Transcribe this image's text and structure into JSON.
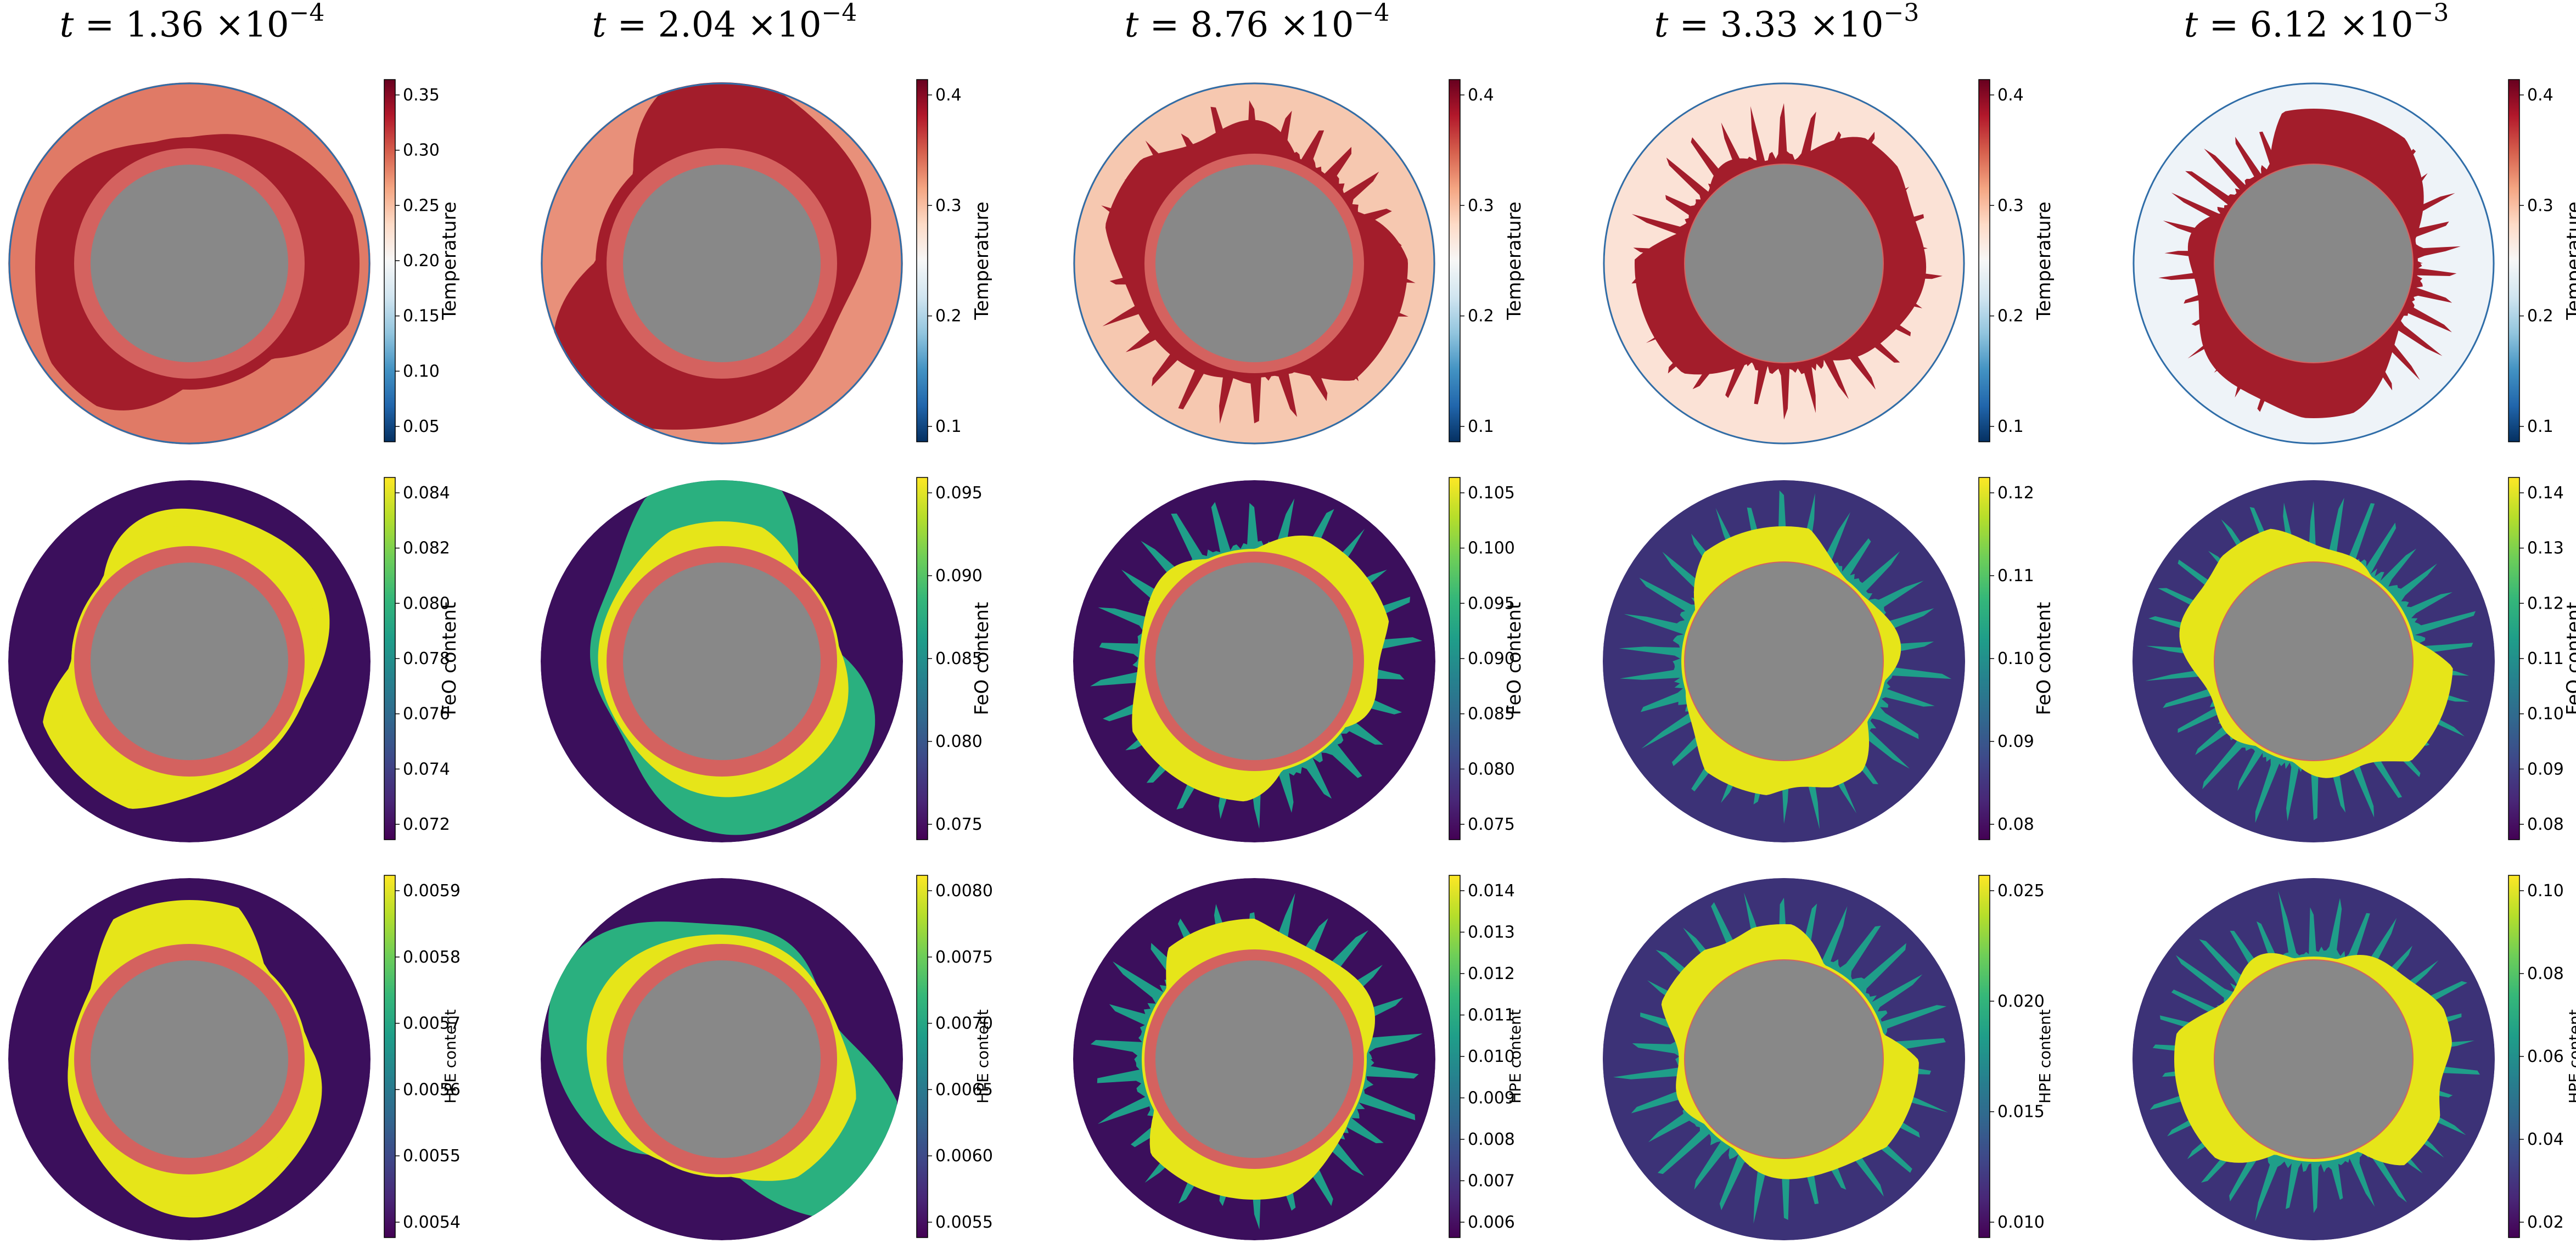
{
  "figure": {
    "columns": [
      {
        "t_mantissa": "1.36",
        "t_exponent": "−4"
      },
      {
        "t_mantissa": "2.04",
        "t_exponent": "−4"
      },
      {
        "t_mantissa": "8.76",
        "t_exponent": "−4"
      },
      {
        "t_mantissa": "3.33",
        "t_exponent": "−3"
      },
      {
        "t_mantissa": "6.12",
        "t_exponent": "−3"
      }
    ],
    "time_symbol": "t",
    "equals": "=",
    "times_ten": "×10",
    "rows": [
      {
        "field": "temperature",
        "colorbar_label": "Temperature",
        "colormap": "RdBu_r",
        "ticks": [
          [
            "0.35",
            "0.30",
            "0.25",
            "0.20",
            "0.15",
            "0.10",
            "0.05"
          ],
          [
            "0.4",
            "0.3",
            "0.2",
            "0.1"
          ],
          [
            "0.4",
            "0.3",
            "0.2",
            "0.1"
          ],
          [
            "0.4",
            "0.3",
            "0.2",
            "0.1"
          ],
          [
            "0.4",
            "0.3",
            "0.2",
            "0.1"
          ]
        ]
      },
      {
        "field": "feo",
        "colorbar_label": "FeO content",
        "colormap": "viridis",
        "ticks": [
          [
            "0.084",
            "0.082",
            "0.080",
            "0.078",
            "0.076",
            "0.074",
            "0.072"
          ],
          [
            "0.095",
            "0.090",
            "0.085",
            "0.080",
            "0.075"
          ],
          [
            "0.105",
            "0.100",
            "0.095",
            "0.090",
            "0.085",
            "0.080",
            "0.075"
          ],
          [
            "0.12",
            "0.11",
            "0.10",
            "0.09",
            "0.08"
          ],
          [
            "0.14",
            "0.13",
            "0.12",
            "0.11",
            "0.10",
            "0.09",
            "0.08"
          ]
        ]
      },
      {
        "field": "hpe",
        "colorbar_label": "HPE content",
        "colormap": "viridis",
        "ticks": [
          [
            "0.0059",
            "0.0058",
            "0.0057",
            "0.0056",
            "0.0055",
            "0.0054"
          ],
          [
            "0.0080",
            "0.0075",
            "0.0070",
            "0.0065",
            "0.0060",
            "0.0055"
          ],
          [
            "0.014",
            "0.013",
            "0.012",
            "0.011",
            "0.010",
            "0.009",
            "0.008",
            "0.007",
            "0.006"
          ],
          [
            "0.025",
            "0.020",
            "0.015",
            "0.010"
          ],
          [
            "0.10",
            "0.08",
            "0.06",
            "0.04",
            "0.02"
          ]
        ]
      }
    ],
    "colors": {
      "core": "#888888",
      "core_ring": "#d4625f",
      "rdbu": [
        "#053061",
        "#2166ac",
        "#4393c3",
        "#92c5de",
        "#d1e5f0",
        "#f7f7f7",
        "#fddbc7",
        "#f4a582",
        "#d6604d",
        "#b2182b",
        "#67001f"
      ],
      "viridis": [
        "#440154",
        "#482878",
        "#3e4989",
        "#31688e",
        "#26828e",
        "#1f9e89",
        "#35b779",
        "#6ece58",
        "#b5de2b",
        "#fde725"
      ],
      "temp_bg": [
        "#e07a66",
        "#e8907a",
        "#f6c8b0",
        "#fbe2d6",
        "#eef3f8"
      ],
      "temp_plume": "#a31d2b",
      "feo_bg": "#3b0f5c",
      "feo_plume": "#e6e519"
    }
  }
}
